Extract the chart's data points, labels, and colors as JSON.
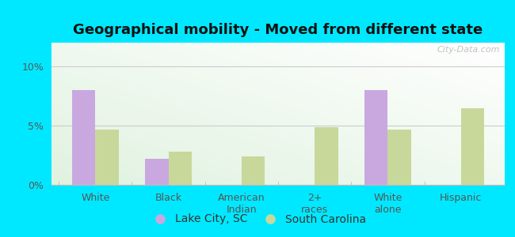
{
  "title": "Geographical mobility - Moved from different state",
  "categories": [
    "White",
    "Black",
    "American\nIndian",
    "2+\nraces",
    "White\nalone",
    "Hispanic"
  ],
  "lake_city_values": [
    8.0,
    2.2,
    0,
    0,
    8.0,
    0
  ],
  "south_carolina_values": [
    4.7,
    2.8,
    2.4,
    4.9,
    4.7,
    6.5
  ],
  "lake_city_color": "#c9a8e0",
  "south_carolina_color": "#c8d89a",
  "bg_outer": "#00e8ff",
  "ylim": [
    0,
    12
  ],
  "yticks": [
    0,
    5,
    10
  ],
  "ytick_labels": [
    "0%",
    "5%",
    "10%"
  ],
  "bar_width": 0.32,
  "legend_lake_city": "Lake City, SC",
  "legend_south_carolina": "South Carolina",
  "watermark": "City-Data.com",
  "title_fontsize": 13,
  "axis_fontsize": 9,
  "legend_fontsize": 10
}
